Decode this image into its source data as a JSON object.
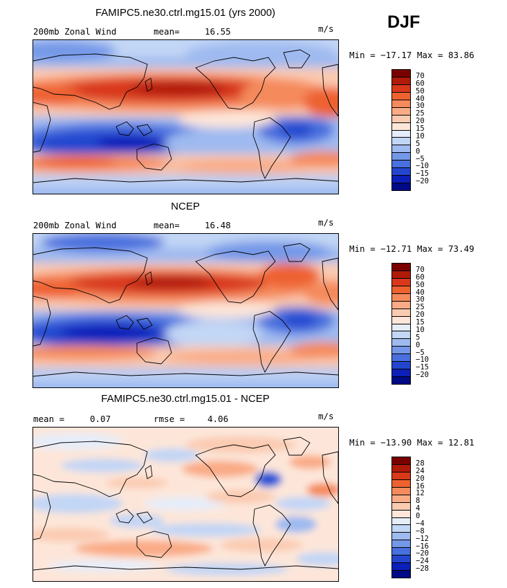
{
  "season": "DJF",
  "panels": [
    {
      "title": "FAMIPC5.ne30.ctrl.mg15.01 (yrs 2000)",
      "left_label": "200mb Zonal Wind",
      "stat1_label": "mean=",
      "stat1_value": "16.55",
      "units": "m/s",
      "minmax": "Min = −17.17 Max =  83.86",
      "colorbar_labels": [
        "70",
        "60",
        "50",
        "40",
        "30",
        "25",
        "20",
        "15",
        "10",
        "5",
        "0",
        "−5",
        "−10",
        "−15",
        "−20"
      ],
      "colors": [
        "#7a0000",
        "#b01a08",
        "#d9391a",
        "#ee6230",
        "#f58a5c",
        "#f9ab86",
        "#fbcbb1",
        "#fde6d9",
        "#e6edf9",
        "#c2d6f5",
        "#9ebaf0",
        "#7498e8",
        "#4870de",
        "#2446cf",
        "#0c1fb8",
        "#000a85"
      ]
    },
    {
      "title": "NCEP",
      "left_label": "200mb Zonal Wind",
      "stat1_label": "mean=",
      "stat1_value": "16.48",
      "units": "m/s",
      "minmax": "Min = −12.71 Max =  73.49",
      "colorbar_labels": [
        "70",
        "60",
        "50",
        "40",
        "30",
        "25",
        "20",
        "15",
        "10",
        "5",
        "0",
        "−5",
        "−10",
        "−15",
        "−20"
      ],
      "colors": [
        "#7a0000",
        "#b01a08",
        "#d9391a",
        "#ee6230",
        "#f58a5c",
        "#f9ab86",
        "#fbcbb1",
        "#fde6d9",
        "#e6edf9",
        "#c2d6f5",
        "#9ebaf0",
        "#7498e8",
        "#4870de",
        "#2446cf",
        "#0c1fb8",
        "#000a85"
      ]
    },
    {
      "title": "FAMIPC5.ne30.ctrl.mg15.01 - NCEP",
      "left_label": "mean =",
      "left_value": "0.07",
      "stat1_label": "rmse =",
      "stat1_value": "4.06",
      "units": "m/s",
      "minmax": "Min = −13.90 Max =  12.81",
      "colorbar_labels": [
        "28",
        "24",
        "20",
        "16",
        "12",
        "8",
        "4",
        "0",
        "−4",
        "−8",
        "−12",
        "−16",
        "−20",
        "−24",
        "−28"
      ],
      "colors": [
        "#7a0000",
        "#b01a08",
        "#d9391a",
        "#ee6230",
        "#f58a5c",
        "#f9ab86",
        "#fbcbb1",
        "#fde6d9",
        "#e6edf9",
        "#c2d6f5",
        "#9ebaf0",
        "#7498e8",
        "#4870de",
        "#2446cf",
        "#0c1fb8",
        "#000a85"
      ]
    }
  ]
}
